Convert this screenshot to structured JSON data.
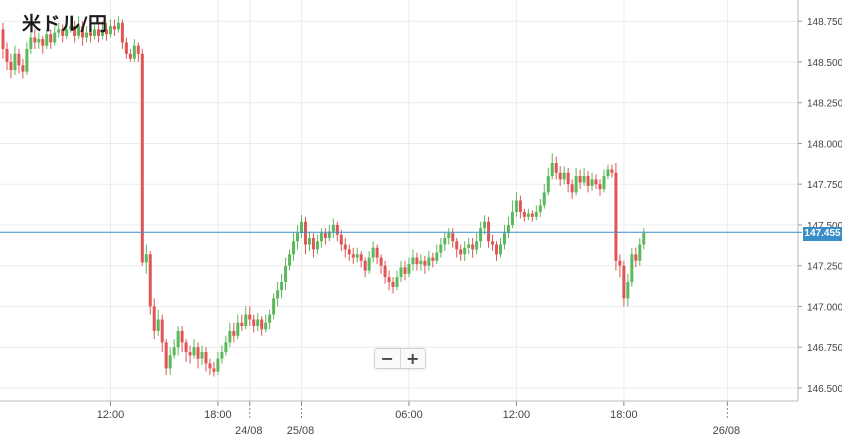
{
  "title": "米ドル/円",
  "zoom": {
    "out_label": "−",
    "in_label": "+"
  },
  "current_price": "147.455",
  "colors": {
    "up": "#5cb85c",
    "down": "#e05555",
    "price_line": "#3a8ec7",
    "grid": "#ececec"
  },
  "chart_data": {
    "type": "candlestick",
    "title": "米ドル/円",
    "ylim": [
      146.42,
      148.88
    ],
    "y_ticks": [
      "146.500",
      "146.750",
      "147.000",
      "147.250",
      "147.500",
      "147.750",
      "148.000",
      "148.250",
      "148.500",
      "148.750"
    ],
    "x_ticks": [
      {
        "label": "12:00",
        "i": 27
      },
      {
        "label": "18:00",
        "i": 54
      },
      {
        "label": "24/08",
        "i": 62,
        "date": true
      },
      {
        "label": "25/08",
        "i": 75,
        "date": true
      },
      {
        "label": "06:00",
        "i": 102
      },
      {
        "label": "12:00",
        "i": 129
      },
      {
        "label": "18:00",
        "i": 156
      },
      {
        "label": "26/08",
        "i": 182,
        "date": true
      }
    ],
    "current_price": 147.455,
    "candles": [
      [
        148.7,
        148.58,
        148.74,
        148.52
      ],
      [
        148.58,
        148.5,
        148.62,
        148.45
      ],
      [
        148.5,
        148.45,
        148.55,
        148.4
      ],
      [
        148.45,
        148.55,
        148.6,
        148.42
      ],
      [
        148.55,
        148.48,
        148.58,
        148.43
      ],
      [
        148.48,
        148.44,
        148.52,
        148.4
      ],
      [
        148.44,
        148.58,
        148.62,
        148.42
      ],
      [
        148.58,
        148.65,
        148.68,
        148.55
      ],
      [
        148.65,
        148.62,
        148.7,
        148.58
      ],
      [
        148.62,
        148.64,
        148.68,
        148.58
      ],
      [
        148.64,
        148.6,
        148.66,
        148.55
      ],
      [
        148.6,
        148.67,
        148.7,
        148.58
      ],
      [
        148.67,
        148.62,
        148.7,
        148.58
      ],
      [
        148.62,
        148.68,
        148.72,
        148.6
      ],
      [
        148.68,
        148.7,
        148.74,
        148.65
      ],
      [
        148.7,
        148.66,
        148.73,
        148.62
      ],
      [
        148.66,
        148.7,
        148.76,
        148.64
      ],
      [
        148.7,
        148.72,
        148.78,
        148.68
      ],
      [
        148.72,
        148.66,
        148.75,
        148.62
      ],
      [
        148.66,
        148.72,
        148.78,
        148.64
      ],
      [
        148.72,
        148.65,
        148.75,
        148.6
      ],
      [
        148.65,
        148.68,
        148.72,
        148.62
      ],
      [
        148.68,
        148.66,
        148.72,
        148.62
      ],
      [
        148.66,
        148.7,
        148.74,
        148.64
      ],
      [
        148.7,
        148.66,
        148.74,
        148.62
      ],
      [
        148.66,
        148.7,
        148.75,
        148.64
      ],
      [
        148.7,
        148.67,
        148.74,
        148.63
      ],
      [
        148.67,
        148.72,
        148.76,
        148.65
      ],
      [
        148.72,
        148.7,
        148.76,
        148.66
      ],
      [
        148.7,
        148.74,
        148.78,
        148.68
      ],
      [
        148.74,
        148.62,
        148.76,
        148.58
      ],
      [
        148.62,
        148.55,
        148.65,
        148.52
      ],
      [
        148.55,
        148.52,
        148.58,
        148.5
      ],
      [
        148.52,
        148.6,
        148.64,
        148.5
      ],
      [
        148.6,
        148.55,
        148.62,
        148.5
      ],
      [
        148.55,
        147.27,
        148.58,
        147.25
      ],
      [
        147.27,
        147.32,
        147.38,
        147.2
      ],
      [
        147.32,
        147.0,
        147.34,
        146.95
      ],
      [
        147.0,
        146.85,
        147.05,
        146.8
      ],
      [
        146.85,
        146.92,
        146.98,
        146.82
      ],
      [
        146.92,
        146.78,
        146.95,
        146.72
      ],
      [
        146.78,
        146.62,
        146.8,
        146.58
      ],
      [
        146.62,
        146.7,
        146.75,
        146.58
      ],
      [
        146.7,
        146.75,
        146.8,
        146.68
      ],
      [
        146.75,
        146.85,
        146.88,
        146.7
      ],
      [
        146.85,
        146.78,
        146.88,
        146.72
      ],
      [
        146.78,
        146.72,
        146.8,
        146.66
      ],
      [
        146.72,
        146.7,
        146.76,
        146.65
      ],
      [
        146.7,
        146.75,
        146.8,
        146.68
      ],
      [
        146.75,
        146.68,
        146.78,
        146.62
      ],
      [
        146.68,
        146.72,
        146.76,
        146.64
      ],
      [
        146.72,
        146.65,
        146.75,
        146.6
      ],
      [
        146.65,
        146.62,
        146.68,
        146.58
      ],
      [
        146.62,
        146.6,
        146.66,
        146.57
      ],
      [
        146.6,
        146.68,
        146.72,
        146.58
      ],
      [
        146.68,
        146.72,
        146.76,
        146.65
      ],
      [
        146.72,
        146.78,
        146.82,
        146.7
      ],
      [
        146.78,
        146.85,
        146.9,
        146.75
      ],
      [
        146.85,
        146.82,
        146.9,
        146.78
      ],
      [
        146.82,
        146.9,
        146.95,
        146.8
      ],
      [
        146.9,
        146.88,
        146.95,
        146.85
      ],
      [
        146.88,
        146.95,
        147.0,
        146.86
      ],
      [
        146.95,
        146.92,
        147.0,
        146.88
      ],
      [
        146.92,
        146.88,
        146.95,
        146.84
      ],
      [
        146.88,
        146.92,
        146.96,
        146.85
      ],
      [
        146.92,
        146.86,
        146.94,
        146.82
      ],
      [
        146.86,
        146.9,
        146.95,
        146.84
      ],
      [
        146.9,
        146.95,
        146.98,
        146.86
      ],
      [
        146.95,
        147.05,
        147.08,
        146.92
      ],
      [
        147.05,
        147.1,
        147.15,
        147.0
      ],
      [
        147.1,
        147.15,
        147.2,
        147.05
      ],
      [
        147.15,
        147.25,
        147.3,
        147.1
      ],
      [
        147.25,
        147.32,
        147.35,
        147.22
      ],
      [
        147.32,
        147.4,
        147.45,
        147.28
      ],
      [
        147.4,
        147.45,
        147.5,
        147.35
      ],
      [
        147.45,
        147.52,
        147.56,
        147.42
      ],
      [
        147.52,
        147.38,
        147.55,
        147.32
      ],
      [
        147.38,
        147.42,
        147.46,
        147.34
      ],
      [
        147.42,
        147.35,
        147.45,
        147.3
      ],
      [
        147.35,
        147.4,
        147.44,
        147.32
      ],
      [
        147.4,
        147.45,
        147.48,
        147.36
      ],
      [
        147.45,
        147.42,
        147.48,
        147.38
      ],
      [
        147.42,
        147.46,
        147.5,
        147.4
      ],
      [
        147.46,
        147.5,
        147.54,
        147.42
      ],
      [
        147.5,
        147.44,
        147.52,
        147.4
      ],
      [
        147.44,
        147.38,
        147.47,
        147.34
      ],
      [
        147.38,
        147.35,
        147.42,
        147.3
      ],
      [
        147.35,
        147.32,
        147.38,
        147.28
      ],
      [
        147.32,
        147.3,
        147.36,
        147.26
      ],
      [
        147.3,
        147.32,
        147.36,
        147.27
      ],
      [
        147.32,
        147.28,
        147.34,
        147.24
      ],
      [
        147.28,
        147.22,
        147.3,
        147.18
      ],
      [
        147.22,
        147.3,
        147.34,
        147.2
      ],
      [
        147.3,
        147.36,
        147.4,
        147.27
      ],
      [
        147.36,
        147.3,
        147.38,
        147.26
      ],
      [
        147.3,
        147.25,
        147.32,
        147.2
      ],
      [
        147.25,
        147.18,
        147.28,
        147.14
      ],
      [
        147.18,
        147.15,
        147.22,
        147.1
      ],
      [
        147.15,
        147.12,
        147.18,
        147.08
      ],
      [
        147.12,
        147.18,
        147.22,
        147.1
      ],
      [
        147.18,
        147.24,
        147.28,
        147.15
      ],
      [
        147.24,
        147.2,
        147.28,
        147.16
      ],
      [
        147.2,
        147.26,
        147.3,
        147.18
      ],
      [
        147.26,
        147.3,
        147.35,
        147.22
      ],
      [
        147.3,
        147.26,
        147.33,
        147.22
      ],
      [
        147.26,
        147.28,
        147.32,
        147.22
      ],
      [
        147.28,
        147.25,
        147.31,
        147.2
      ],
      [
        147.25,
        147.3,
        147.34,
        147.22
      ],
      [
        147.3,
        147.28,
        147.33,
        147.24
      ],
      [
        147.28,
        147.33,
        147.38,
        147.26
      ],
      [
        147.33,
        147.38,
        147.42,
        147.3
      ],
      [
        147.38,
        147.42,
        147.46,
        147.34
      ],
      [
        147.42,
        147.45,
        147.48,
        147.38
      ],
      [
        147.45,
        147.4,
        147.48,
        147.36
      ],
      [
        147.4,
        147.35,
        147.42,
        147.3
      ],
      [
        147.35,
        147.32,
        147.38,
        147.28
      ],
      [
        147.32,
        147.36,
        147.4,
        147.28
      ],
      [
        147.36,
        147.38,
        147.42,
        147.32
      ],
      [
        147.38,
        147.35,
        147.42,
        147.3
      ],
      [
        147.35,
        147.4,
        147.45,
        147.32
      ],
      [
        147.4,
        147.48,
        147.52,
        147.36
      ],
      [
        147.48,
        147.52,
        147.56,
        147.44
      ],
      [
        147.52,
        147.4,
        147.55,
        147.36
      ],
      [
        147.4,
        147.38,
        147.44,
        147.34
      ],
      [
        147.38,
        147.32,
        147.4,
        147.28
      ],
      [
        147.32,
        147.38,
        147.42,
        147.3
      ],
      [
        147.38,
        147.45,
        147.5,
        147.35
      ],
      [
        147.45,
        147.5,
        147.55,
        147.42
      ],
      [
        147.5,
        147.58,
        147.65,
        147.48
      ],
      [
        147.58,
        147.65,
        147.7,
        147.55
      ],
      [
        147.65,
        147.58,
        147.68,
        147.54
      ],
      [
        147.58,
        147.55,
        147.6,
        147.52
      ],
      [
        147.55,
        147.57,
        147.6,
        147.53
      ],
      [
        147.57,
        147.55,
        147.59,
        147.52
      ],
      [
        147.55,
        147.58,
        147.62,
        147.53
      ],
      [
        147.58,
        147.62,
        147.66,
        147.55
      ],
      [
        147.62,
        147.7,
        147.75,
        147.6
      ],
      [
        147.7,
        147.8,
        147.85,
        147.68
      ],
      [
        147.8,
        147.88,
        147.94,
        147.78
      ],
      [
        147.88,
        147.82,
        147.92,
        147.78
      ],
      [
        147.82,
        147.78,
        147.86,
        147.74
      ],
      [
        147.78,
        147.82,
        147.86,
        147.75
      ],
      [
        147.82,
        147.75,
        147.85,
        147.7
      ],
      [
        147.75,
        147.7,
        147.78,
        147.66
      ],
      [
        147.7,
        147.8,
        147.85,
        147.68
      ],
      [
        147.8,
        147.76,
        147.84,
        147.72
      ],
      [
        147.76,
        147.8,
        147.85,
        147.74
      ],
      [
        147.8,
        147.74,
        147.83,
        147.7
      ],
      [
        147.74,
        147.78,
        147.82,
        147.71
      ],
      [
        147.78,
        147.75,
        147.81,
        147.72
      ],
      [
        147.75,
        147.72,
        147.78,
        147.68
      ],
      [
        147.72,
        147.8,
        147.84,
        147.7
      ],
      [
        147.8,
        147.84,
        147.87,
        147.78
      ],
      [
        147.84,
        147.82,
        147.87,
        147.79
      ],
      [
        147.82,
        147.28,
        147.88,
        147.22
      ],
      [
        147.28,
        147.25,
        147.32,
        147.18
      ],
      [
        147.25,
        147.05,
        147.28,
        147.0
      ],
      [
        147.05,
        147.15,
        147.2,
        147.0
      ],
      [
        147.15,
        147.32,
        147.36,
        147.12
      ],
      [
        147.32,
        147.28,
        147.36,
        147.24
      ],
      [
        147.28,
        147.38,
        147.42,
        147.25
      ],
      [
        147.38,
        147.45,
        147.48,
        147.35
      ]
    ]
  }
}
